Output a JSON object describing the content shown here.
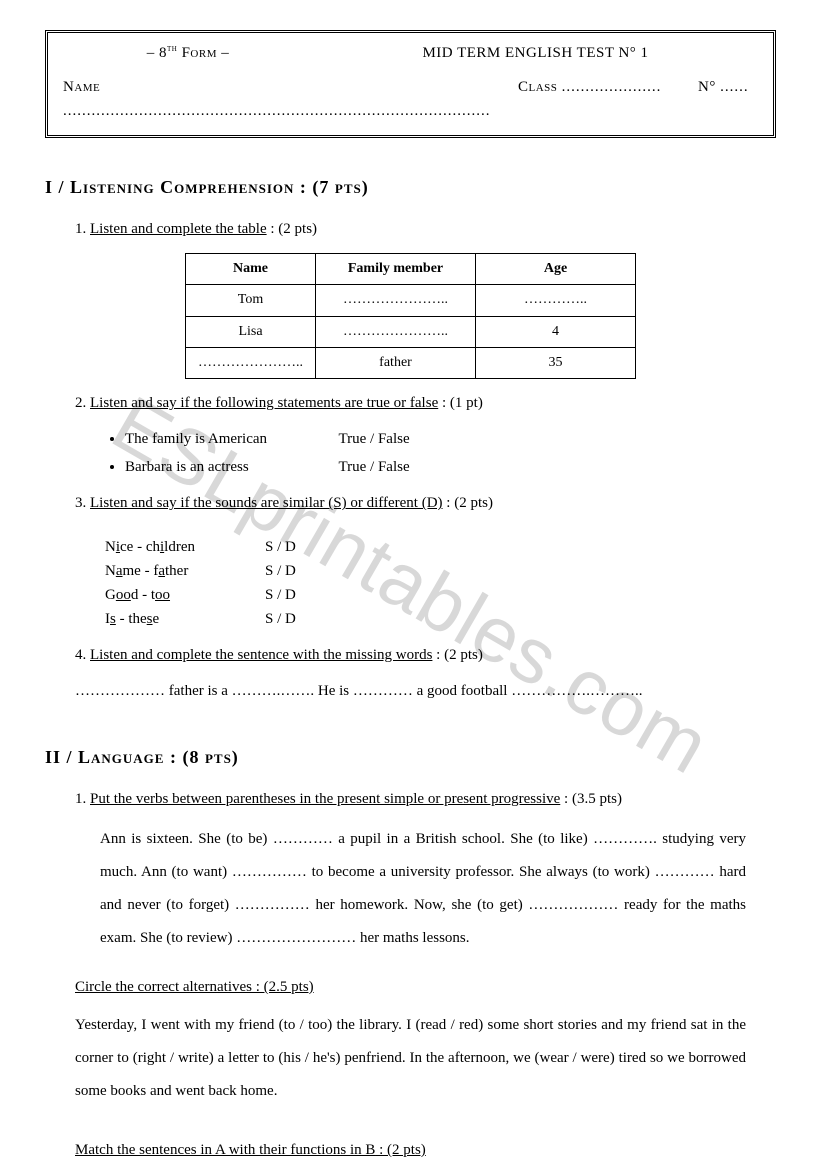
{
  "watermark": "ESLprintables.com",
  "header": {
    "form": "– 8",
    "form_sup": "th",
    "form_after": " Form –",
    "title": "MID TERM ENGLISH TEST N° 1",
    "name_label": "Name",
    "name_dots": "..........................................................................................",
    "class_label": "Class",
    "class_dots": ".....................",
    "no_label": "N°",
    "no_dots": "......"
  },
  "section1": {
    "title": "I / Listening Comprehension : (7 pts)",
    "q1": {
      "num": "1.",
      "text": "Listen and complete the table",
      "pts": " : (2 pts)",
      "table": {
        "headers": [
          "Name",
          "Family member",
          "Age"
        ],
        "rows": [
          [
            "Tom",
            "…………………..",
            "………….."
          ],
          [
            "Lisa",
            "…………………..",
            "4"
          ],
          [
            "…………………..",
            "father",
            "35"
          ]
        ],
        "col_widths": [
          "120px",
          "160px",
          "160px"
        ]
      }
    },
    "q2": {
      "num": "2.",
      "text": "Listen and say if the following statements are true or false",
      "pts": " : (1 pt)",
      "items": [
        {
          "stmt": "The family is American",
          "opts": "True  /  False"
        },
        {
          "stmt": "Barbara is an actress",
          "opts": "True  /  False"
        }
      ]
    },
    "q3": {
      "num": "3.",
      "text": "Listen and say if the sounds are similar (S) or different (D)",
      "pts": " : (2 pts)",
      "rows": [
        {
          "w1a": "N",
          "w1u": "i",
          "w1b": "ce",
          "w2a": "ch",
          "w2u": "i",
          "w2b": "ldren",
          "sd": "S  /  D"
        },
        {
          "w1a": "N",
          "w1u": "a",
          "w1b": "me",
          "w2a": "f",
          "w2u": "a",
          "w2b": "ther",
          "sd": "S  /  D"
        },
        {
          "w1a": "G",
          "w1u": "oo",
          "w1b": "d",
          "w2a": "t",
          "w2u": "oo",
          "w2b": "",
          "sd": "S  /  D"
        },
        {
          "w1a": "I",
          "w1u": "s",
          "w1b": "",
          "w2a": "the",
          "w2u": "s",
          "w2b": "e",
          "sd": "S  /  D"
        }
      ]
    },
    "q4": {
      "num": "4.",
      "text": "Listen and complete the sentence with the missing words",
      "pts": " : (2 pts)",
      "line": "……………… father is a ……….……. He is ………… a good football …………….……….."
    }
  },
  "section2": {
    "title": "II / Language : (8 pts)",
    "q1": {
      "num": "1.",
      "text": "Put the verbs between parentheses in the present simple or present progressive",
      "pts": " : (3.5 pts)",
      "para": "Ann is sixteen. She (to be) ………… a pupil in a British school. She (to like) …………. studying very much. Ann (to want) …………… to become a university professor. She always (to work) ………… hard and never (to forget) …………… her homework. Now, she (to get) ……………… ready for the maths exam. She (to review) …………………… her maths lessons."
    },
    "q2": {
      "text": "Circle the correct alternatives",
      "pts": " : (2.5 pts)",
      "para": "Yesterday, I went with my friend (to / too) the library. I (read / red) some short stories and my friend sat in the corner to (right / write) a letter to (his / he's) penfriend. In the afternoon, we (wear / were) tired so we borrowed some books and went back home."
    },
    "q3": {
      "text": "Match the sentences in A with their functions in B",
      "pts": " : (2 pts)"
    }
  }
}
